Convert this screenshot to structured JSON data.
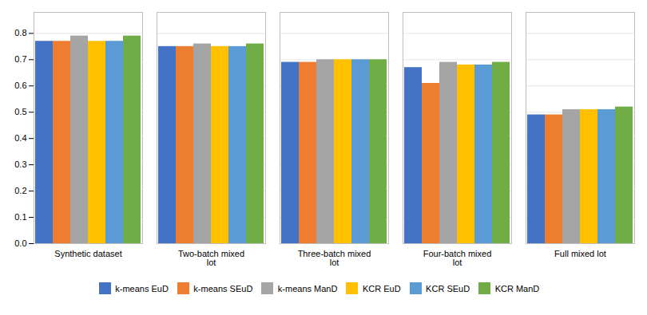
{
  "chart_data": {
    "type": "bar",
    "categories": [
      "Synthetic dataset",
      "Two-batch mixed\nlot",
      "Three-batch mixed\nlot",
      "Four-batch mixed\nlot",
      "Full mixed lot"
    ],
    "series": [
      {
        "name": "k-means EuD",
        "color": "#4472C4",
        "values": [
          0.77,
          0.75,
          0.69,
          0.67,
          0.49
        ]
      },
      {
        "name": "k-means SEuD",
        "color": "#ED7D31",
        "values": [
          0.77,
          0.75,
          0.69,
          0.61,
          0.49
        ]
      },
      {
        "name": "k-means ManD",
        "color": "#A5A5A5",
        "values": [
          0.79,
          0.76,
          0.7,
          0.69,
          0.51
        ]
      },
      {
        "name": "KCR EuD",
        "color": "#FFC000",
        "values": [
          0.77,
          0.75,
          0.7,
          0.68,
          0.51
        ]
      },
      {
        "name": "KCR SEuD",
        "color": "#5B9BD5",
        "values": [
          0.77,
          0.75,
          0.7,
          0.68,
          0.51
        ]
      },
      {
        "name": "KCR ManD",
        "color": "#70AD47",
        "values": [
          0.79,
          0.76,
          0.7,
          0.69,
          0.52
        ]
      }
    ],
    "ylim": [
      0,
      0.88
    ],
    "yticks": [
      0,
      0.1,
      0.2,
      0.3,
      0.4,
      0.5,
      0.6,
      0.7,
      0.8
    ],
    "grid": true,
    "legend": "bottom"
  }
}
